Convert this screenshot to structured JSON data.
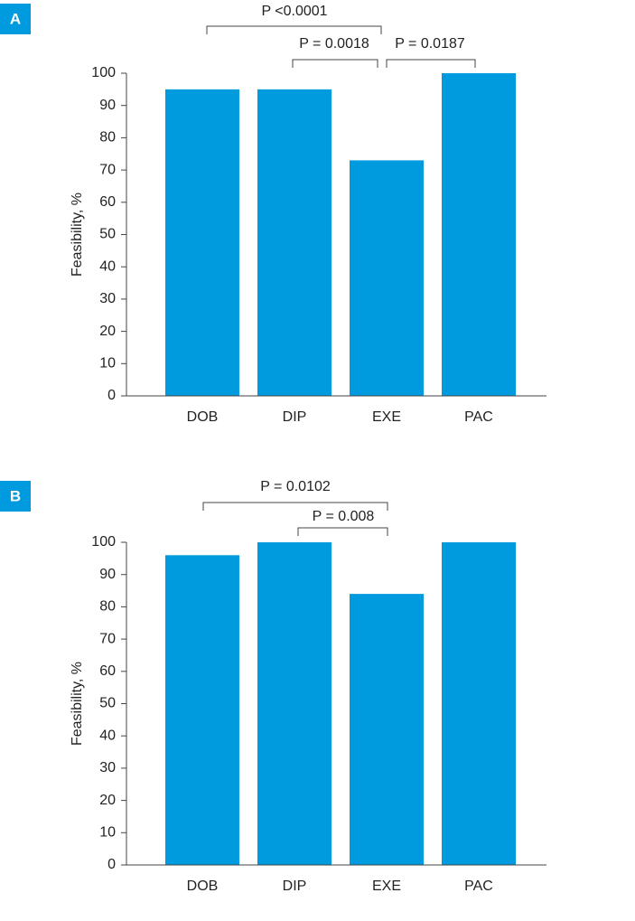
{
  "chart_data": [
    {
      "type": "bar",
      "panel": "A",
      "ylabel": "Feasibility, %",
      "color": "#009bde",
      "categories": [
        "DOB",
        "DIP",
        "EXE",
        "PAC"
      ],
      "values": [
        95,
        95,
        73,
        100
      ],
      "ylim": [
        0,
        100
      ],
      "yticks": [
        0,
        10,
        20,
        30,
        40,
        50,
        60,
        70,
        80,
        90,
        100
      ],
      "annotations": [
        "P <0.0001",
        "P = 0.0018",
        "P = 0.0187"
      ]
    },
    {
      "type": "bar",
      "panel": "B",
      "ylabel": "Feasibility, %",
      "color": "#009bde",
      "categories": [
        "DOB",
        "DIP",
        "EXE",
        "PAC"
      ],
      "values": [
        96,
        100,
        84,
        100
      ],
      "ylim": [
        0,
        100
      ],
      "yticks": [
        0,
        10,
        20,
        30,
        40,
        50,
        60,
        70,
        80,
        90,
        100
      ],
      "annotations": [
        "P = 0.0102",
        "P = 0.008"
      ]
    }
  ]
}
